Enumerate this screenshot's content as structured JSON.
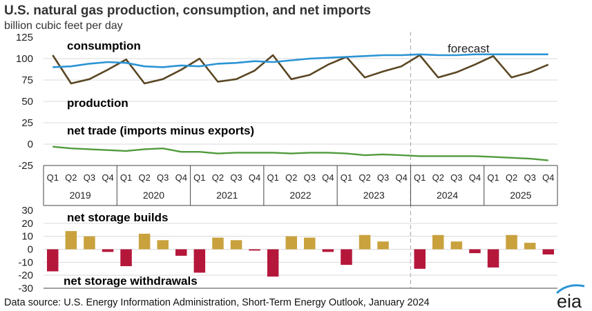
{
  "title": "U.S. natural gas production, consumption, and net imports",
  "subtitle": "billion cubic feet per day",
  "source": "Data source: U.S. Energy Information Administration, Short-Term Energy Outlook, January 2024",
  "logo_text": "eia",
  "colors": {
    "consumption": "#5a4622",
    "production": "#2a93d5",
    "net_trade": "#4f9a3b",
    "builds": "#c9a23e",
    "withdrawals": "#b5173b",
    "grid": "#d9d9d9",
    "forecast_line": "#b0b0b0"
  },
  "chart_data": [
    {
      "type": "line",
      "categories": [
        "Q1",
        "Q2",
        "Q3",
        "Q4",
        "Q1",
        "Q2",
        "Q3",
        "Q4",
        "Q1",
        "Q2",
        "Q3",
        "Q4",
        "Q1",
        "Q2",
        "Q3",
        "Q4",
        "Q1",
        "Q2",
        "Q3",
        "Q4",
        "Q1",
        "Q2",
        "Q3",
        "Q4",
        "Q1",
        "Q2",
        "Q3",
        "Q4"
      ],
      "years": [
        "2019",
        "2020",
        "2021",
        "2022",
        "2023",
        "2024",
        "2025"
      ],
      "ylim": [
        -25,
        125
      ],
      "yticks": [
        "125",
        "100",
        "75",
        "50",
        "25",
        "0",
        "-25"
      ],
      "annotations": {
        "consumption": "consumption",
        "production": "production",
        "net_trade": "net trade (imports minus exports)",
        "forecast": "forecast"
      },
      "forecast_start_index": 20,
      "series": [
        {
          "name": "consumption",
          "values": [
            104,
            71,
            76,
            87,
            99,
            71,
            76,
            87,
            100,
            73,
            76,
            86,
            104,
            76,
            81,
            93,
            102,
            78,
            85,
            91,
            104,
            78,
            84,
            93,
            103,
            78,
            84,
            93
          ]
        },
        {
          "name": "production",
          "values": [
            90,
            91,
            94,
            96,
            95,
            91,
            90,
            92,
            91,
            94,
            95,
            97,
            96,
            98,
            100,
            101,
            102,
            103,
            104,
            104,
            105,
            104,
            104,
            105,
            105,
            105,
            105,
            105
          ]
        },
        {
          "name": "net trade (imports minus exports)",
          "values": [
            -3,
            -5,
            -6,
            -7,
            -8,
            -6,
            -5,
            -9,
            -9,
            -11,
            -10,
            -10,
            -10,
            -11,
            -10,
            -10,
            -11,
            -13,
            -12,
            -13,
            -14,
            -14,
            -14,
            -14,
            -15,
            -16,
            -17,
            -19
          ]
        }
      ]
    },
    {
      "type": "bar",
      "ylim": [
        -30,
        30
      ],
      "yticks": [
        "30",
        "20",
        "10",
        "0",
        "-10",
        "-20",
        "-30"
      ],
      "annotations": {
        "builds": "net storage builds",
        "withdrawals": "net storage withdrawals"
      },
      "values": [
        -17,
        14,
        10,
        -2,
        -13,
        12,
        7,
        -5,
        -18,
        9,
        7,
        -1,
        -21,
        10,
        9,
        -2,
        -12,
        11,
        6,
        0,
        -15,
        11,
        6,
        -3,
        -14,
        11,
        5,
        -4
      ]
    }
  ]
}
